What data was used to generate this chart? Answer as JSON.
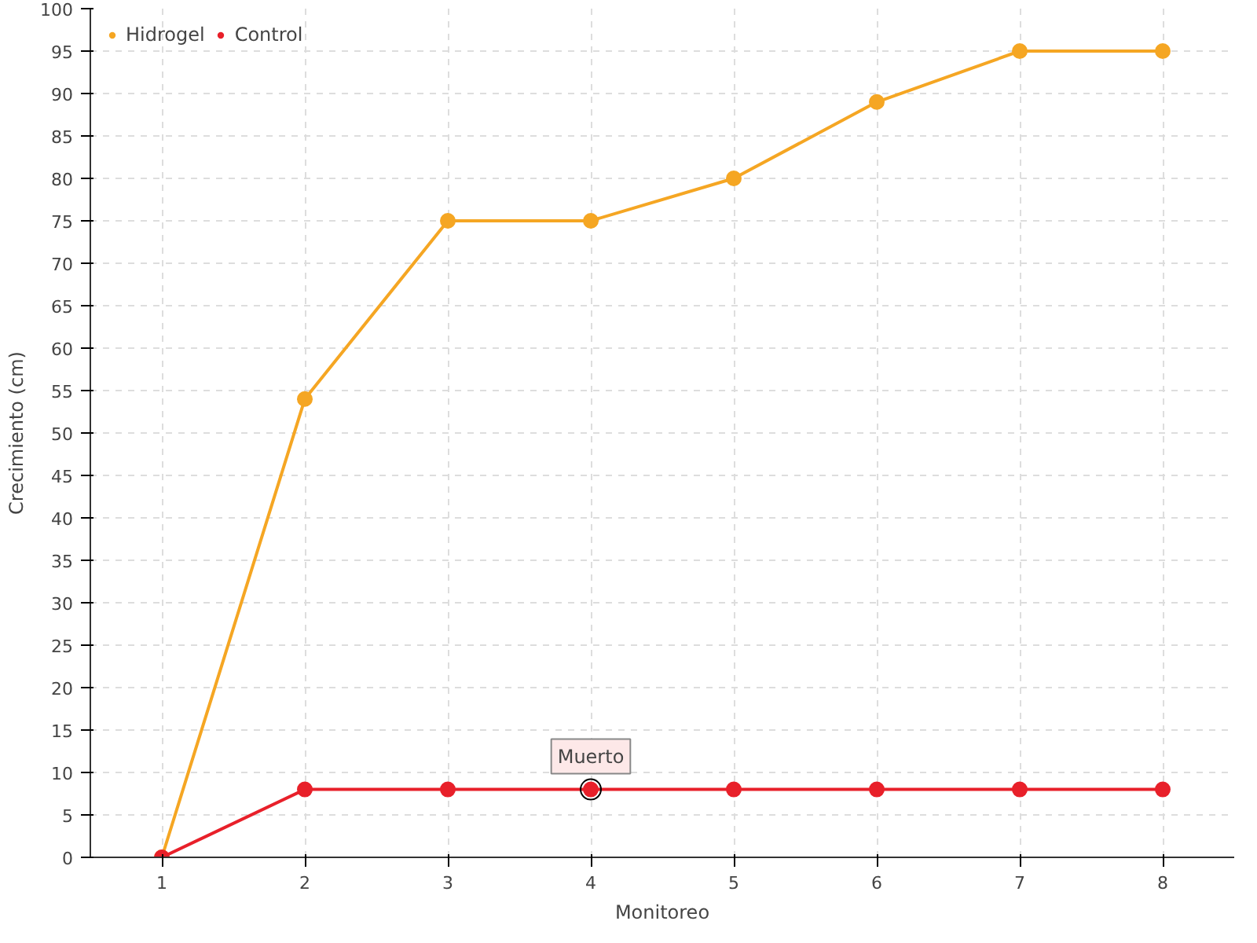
{
  "chart_data": {
    "type": "line",
    "xlabel": "Monitoreo",
    "ylabel": "Crecimiento (cm)",
    "x": [
      1,
      2,
      3,
      4,
      5,
      6,
      7,
      8
    ],
    "series": [
      {
        "name": "Hidrogel",
        "color": "#f5a623",
        "values": [
          0,
          54,
          75,
          75,
          80,
          89,
          95,
          95
        ]
      },
      {
        "name": "Control",
        "color": "#e8202a",
        "values": [
          0,
          8,
          8,
          8,
          8,
          8,
          8,
          8
        ]
      }
    ],
    "xlim": [
      0.5,
      8.5
    ],
    "xticks": [
      1,
      2,
      3,
      4,
      5,
      6,
      7,
      8
    ],
    "ylim": [
      0,
      100
    ],
    "yticks": [
      0,
      5,
      10,
      15,
      20,
      25,
      30,
      35,
      40,
      45,
      50,
      55,
      60,
      65,
      70,
      75,
      80,
      85,
      90,
      95,
      100
    ],
    "grid": true,
    "legend": "top left",
    "marker": "circle",
    "line_style": "solid",
    "annotations": [
      {
        "text": "Muerto",
        "x": 4,
        "y": 8
      }
    ]
  }
}
